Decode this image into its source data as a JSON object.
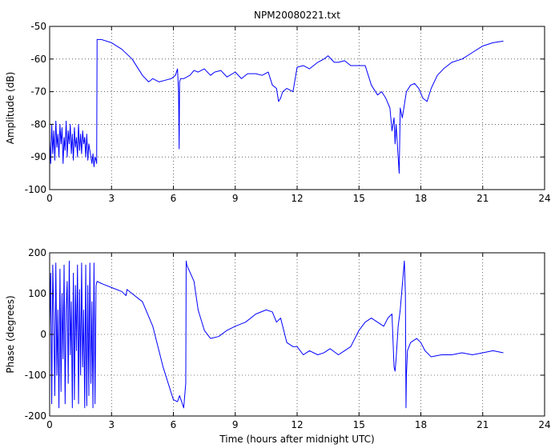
{
  "chart_data": [
    {
      "type": "line",
      "title": "NPM20080221.txt",
      "xlabel": "",
      "ylabel": "Amplitude (dB)",
      "xlim": [
        0,
        24
      ],
      "ylim": [
        -100,
        -50
      ],
      "xticks": [
        0,
        3,
        6,
        9,
        12,
        15,
        18,
        21,
        24
      ],
      "yticks": [
        -100,
        -90,
        -80,
        -70,
        -60,
        -50
      ],
      "grid": true,
      "line_color": "#0000ff",
      "series": [
        {
          "x": [
            0.0,
            0.05,
            0.1,
            0.15,
            0.2,
            0.25,
            0.3,
            0.35,
            0.4,
            0.45,
            0.5,
            0.55,
            0.6,
            0.65,
            0.7,
            0.75,
            0.8,
            0.85,
            0.9,
            0.95,
            1.0,
            1.05,
            1.1,
            1.15,
            1.2,
            1.25,
            1.3,
            1.35,
            1.4,
            1.45,
            1.5,
            1.55,
            1.6,
            1.65,
            1.7,
            1.75,
            1.8,
            1.85,
            1.9,
            1.95,
            2.0,
            2.05,
            2.1,
            2.15,
            2.2,
            2.25,
            2.28,
            2.3,
            2.5,
            3.0,
            3.5,
            4.0,
            4.5,
            4.8,
            5.0,
            5.3,
            5.6,
            5.9,
            6.1,
            6.2,
            6.25,
            6.28,
            6.3,
            6.35,
            6.5,
            6.8,
            7.0,
            7.2,
            7.5,
            7.8,
            8.0,
            8.3,
            8.6,
            9.0,
            9.3,
            9.6,
            10.0,
            10.3,
            10.6,
            10.8,
            11.0,
            11.1,
            11.2,
            11.3,
            11.5,
            11.8,
            12.0,
            12.3,
            12.6,
            13.0,
            13.3,
            13.5,
            13.8,
            14.0,
            14.3,
            14.6,
            15.0,
            15.3,
            15.6,
            15.9,
            16.1,
            16.3,
            16.5,
            16.6,
            16.7,
            16.75,
            16.8,
            16.85,
            16.9,
            16.95,
            17.0,
            17.1,
            17.3,
            17.5,
            17.7,
            17.9,
            18.1,
            18.3,
            18.5,
            18.8,
            19.1,
            19.5,
            20.0,
            20.5,
            21.0,
            21.5,
            22.0
          ],
          "y": [
            -85,
            -92,
            -80,
            -89,
            -82,
            -91,
            -79,
            -87,
            -83,
            -90,
            -80,
            -86,
            -81,
            -92,
            -84,
            -88,
            -79,
            -90,
            -82,
            -86,
            -80,
            -89,
            -83,
            -91,
            -81,
            -87,
            -84,
            -90,
            -80,
            -88,
            -83,
            -89,
            -82,
            -86,
            -84,
            -90,
            -83,
            -91,
            -86,
            -88,
            -90,
            -92,
            -89,
            -93,
            -90,
            -91,
            -92,
            -54,
            -54,
            -55,
            -57,
            -60,
            -65,
            -67,
            -66,
            -67,
            -66.5,
            -66,
            -65,
            -63,
            -70,
            -87.5,
            -67,
            -66,
            -66,
            -65,
            -63.5,
            -64,
            -63,
            -65,
            -64,
            -63.5,
            -65.5,
            -64,
            -66,
            -64.5,
            -64.5,
            -65,
            -64,
            -68,
            -69,
            -73,
            -72,
            -70,
            -69,
            -70,
            -62.5,
            -62,
            -63,
            -61,
            -60,
            -59,
            -61,
            -61,
            -60.5,
            -62,
            -62,
            -62,
            -68,
            -71,
            -70,
            -72,
            -75,
            -82,
            -78,
            -86,
            -80,
            -85,
            -90,
            -95,
            -75,
            -78,
            -70,
            -68,
            -67.5,
            -69,
            -72,
            -73,
            -69,
            -65,
            -63,
            -61,
            -60,
            -58,
            -56,
            -55,
            -54.5
          ]
        }
      ]
    },
    {
      "type": "line",
      "title": "",
      "xlabel": "Time (hours after midnight UTC)",
      "ylabel": "Phase (degrees)",
      "xlim": [
        0,
        24
      ],
      "ylim": [
        -200,
        200
      ],
      "xticks": [
        0,
        3,
        6,
        9,
        12,
        15,
        18,
        21,
        24
      ],
      "yticks": [
        -200,
        -100,
        0,
        100,
        200
      ],
      "grid": true,
      "line_color": "#0000ff",
      "series": [
        {
          "x": [
            0.0,
            0.05,
            0.1,
            0.15,
            0.2,
            0.25,
            0.3,
            0.35,
            0.4,
            0.45,
            0.5,
            0.55,
            0.6,
            0.65,
            0.7,
            0.75,
            0.8,
            0.85,
            0.9,
            0.95,
            1.0,
            1.05,
            1.1,
            1.15,
            1.2,
            1.25,
            1.3,
            1.35,
            1.4,
            1.45,
            1.5,
            1.55,
            1.6,
            1.65,
            1.7,
            1.75,
            1.8,
            1.85,
            1.9,
            1.95,
            2.0,
            2.05,
            2.1,
            2.15,
            2.2,
            2.25,
            2.3,
            2.5,
            3.0,
            3.5,
            3.7,
            3.75,
            3.8,
            4.0,
            4.5,
            5.0,
            5.5,
            6.0,
            6.2,
            6.3,
            6.5,
            6.6,
            6.62,
            6.65,
            7.0,
            7.2,
            7.5,
            7.8,
            8.2,
            8.6,
            9.0,
            9.5,
            10.0,
            10.5,
            10.8,
            11.0,
            11.2,
            11.3,
            11.5,
            11.8,
            12.0,
            12.3,
            12.6,
            13.0,
            13.3,
            13.6,
            14.0,
            14.3,
            14.6,
            15.0,
            15.3,
            15.6,
            15.9,
            16.2,
            16.4,
            16.6,
            16.7,
            16.75,
            16.8,
            16.9,
            17.0,
            17.1,
            17.2,
            17.25,
            17.28,
            17.3,
            17.35,
            17.5,
            17.8,
            18.0,
            18.2,
            18.5,
            19.0,
            19.5,
            20.0,
            20.5,
            21.0,
            21.5,
            22.0
          ],
          "y": [
            20,
            150,
            -170,
            170,
            40,
            -150,
            175,
            -100,
            60,
            -180,
            160,
            -140,
            100,
            -60,
            170,
            -170,
            60,
            130,
            -120,
            180,
            -50,
            80,
            -180,
            150,
            -160,
            120,
            -40,
            170,
            -170,
            110,
            -100,
            175,
            -80,
            60,
            -180,
            170,
            -175,
            120,
            -150,
            175,
            -120,
            80,
            -180,
            175,
            -170,
            120,
            130,
            125,
            115,
            105,
            95,
            110,
            108,
            100,
            80,
            20,
            -80,
            -160,
            -165,
            -150,
            -180,
            -120,
            180,
            170,
            130,
            60,
            10,
            -10,
            -5,
            10,
            20,
            30,
            50,
            60,
            55,
            30,
            40,
            20,
            -20,
            -30,
            -30,
            -50,
            -40,
            -50,
            -45,
            -35,
            -50,
            -40,
            -30,
            10,
            30,
            40,
            30,
            20,
            40,
            50,
            -80,
            -90,
            -60,
            20,
            60,
            120,
            180,
            100,
            -180,
            -100,
            -40,
            -20,
            -10,
            -20,
            -40,
            -55,
            -50,
            -50,
            -45,
            -50,
            -45,
            -40,
            -45
          ]
        }
      ]
    }
  ]
}
